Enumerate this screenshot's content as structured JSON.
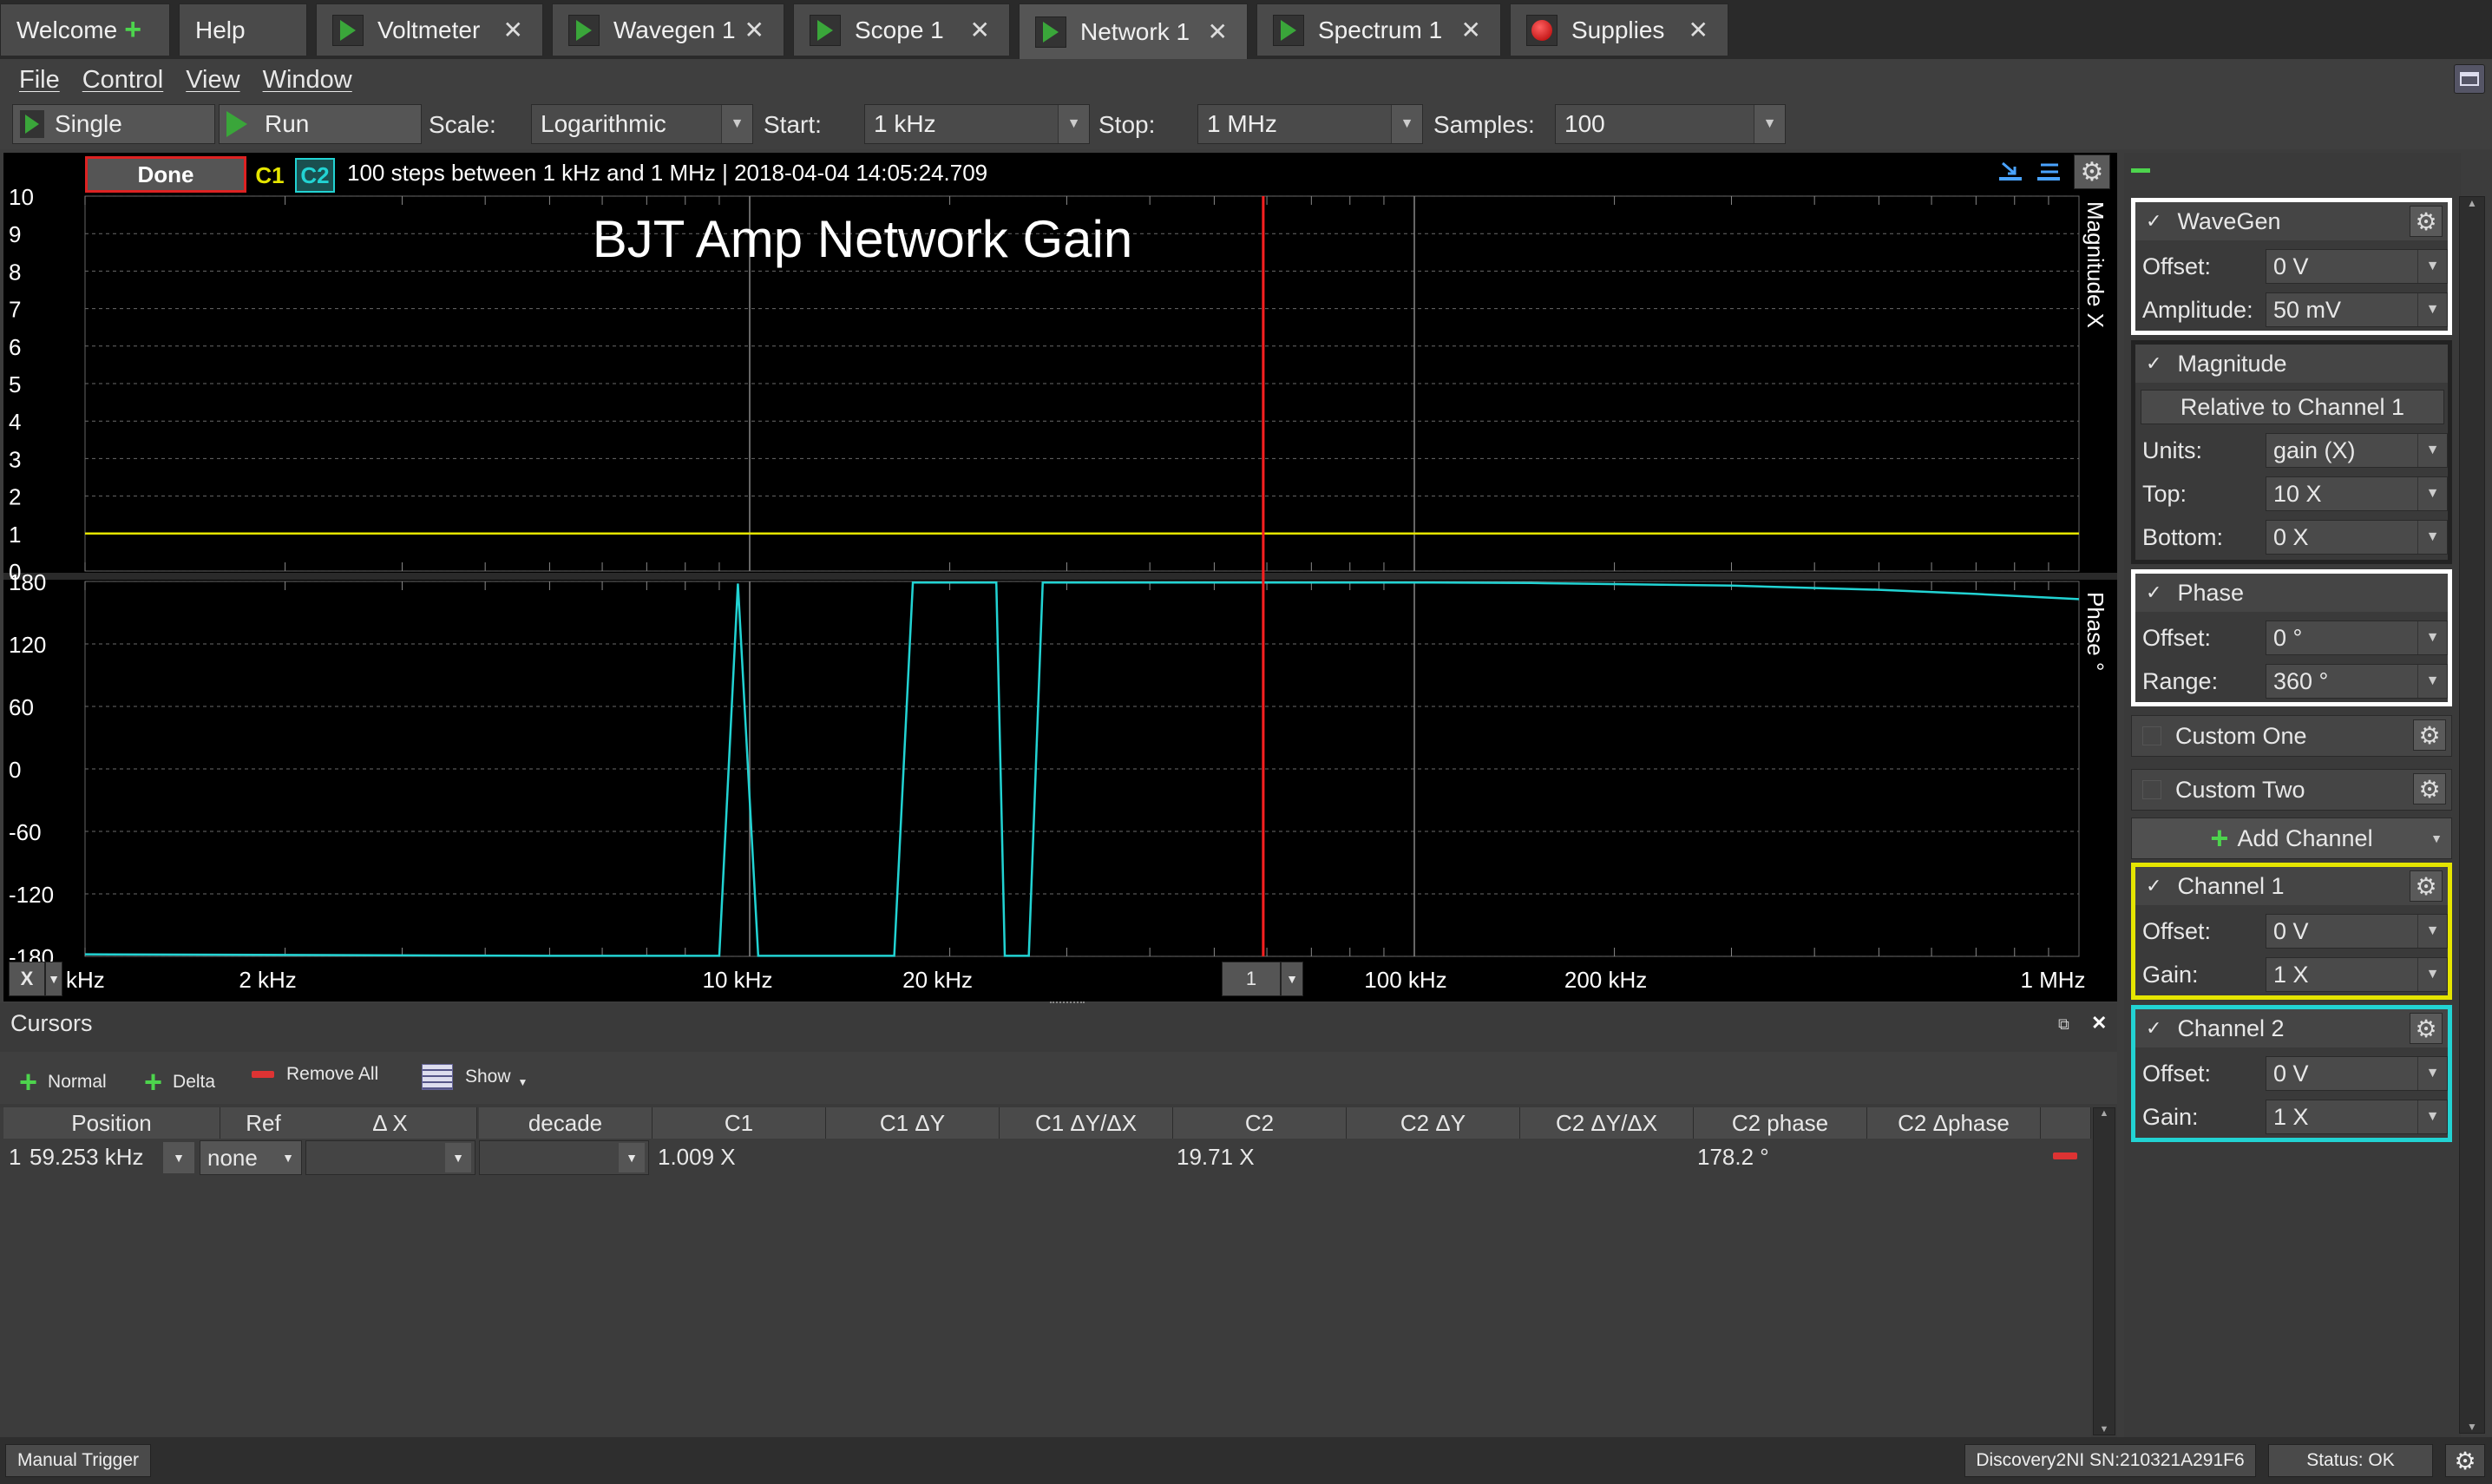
{
  "tabs": [
    {
      "label": "Welcome",
      "icon": "plus-icon"
    },
    {
      "label": "Help"
    },
    {
      "label": "Voltmeter",
      "icon": "play-icon"
    },
    {
      "label": "Wavegen 1",
      "icon": "play-icon"
    },
    {
      "label": "Scope 1",
      "icon": "play-icon"
    },
    {
      "label": "Network 1",
      "icon": "play-icon",
      "active": true
    },
    {
      "label": "Spectrum 1",
      "icon": "play-icon"
    },
    {
      "label": "Supplies",
      "icon": "record-icon"
    }
  ],
  "menu": [
    "File",
    "Control",
    "View",
    "Window"
  ],
  "toolbar": {
    "single_label": "Single",
    "run_label": "Run",
    "scale_label": "Scale:",
    "scale_value": "Logarithmic",
    "start_label": "Start:",
    "start_value": "1 kHz",
    "stop_label": "Stop:",
    "stop_value": "1 MHz",
    "samples_label": "Samples:",
    "samples_value": "100"
  },
  "plot": {
    "status": "Done",
    "c1_label": "C1",
    "c2_label": "C2",
    "info": "100 steps  between 1 kHz and 1 MHz | 2018-04-04 14:05:24.709",
    "title": "BJT Amp Network Gain",
    "magnitude_axis_label": "Magnitude X",
    "phase_axis_label": "Phase °",
    "x_button": "X",
    "zoom_value": "1",
    "colors": {
      "c1": "#e5e500",
      "c2": "#22d3d3",
      "cursor": "#ff2020"
    }
  },
  "chart_data": [
    {
      "type": "line",
      "title": "BJT Amp Network Gain",
      "xlabel": "",
      "ylabel": "Magnitude X",
      "x_scale": "log",
      "xlim": [
        1000,
        1000000
      ],
      "ylim": [
        0,
        10
      ],
      "y_ticks": [
        "10",
        "9",
        "8",
        "7",
        "6",
        "5",
        "4",
        "3",
        "2",
        "1",
        "0"
      ],
      "x_tick_labels": [
        "kHz",
        "2 kHz",
        "10 kHz",
        "20 kHz",
        "100 kHz",
        "200 kHz",
        "1 MHz"
      ],
      "series": [
        {
          "name": "C1",
          "x": [
            1000,
            1000000
          ],
          "y": [
            1.0,
            1.0
          ]
        }
      ],
      "cursor_x": 59253,
      "grid": true
    },
    {
      "type": "line",
      "title": "",
      "xlabel": "",
      "ylabel": "Phase °",
      "x_scale": "log",
      "xlim": [
        1000,
        1000000
      ],
      "ylim": [
        -180,
        180
      ],
      "y_ticks": [
        "180",
        "120",
        "60",
        "0",
        "-60",
        "-120",
        "-180"
      ],
      "series": [
        {
          "name": "C2",
          "x": [
            1000,
            5000,
            9000,
            9600,
            10300,
            16500,
            17600,
            23500,
            24200,
            26300,
            27600,
            100000,
            150000,
            300000,
            500000,
            700000,
            1000000
          ],
          "y": [
            -178,
            -179.5,
            -179.5,
            178,
            -179.5,
            -179.5,
            179,
            179,
            -179.5,
            -179.5,
            179,
            179,
            178.5,
            176,
            172,
            168,
            163
          ]
        }
      ],
      "cursor_x": 59253,
      "grid": true
    }
  ],
  "right_panel": {
    "wavegen": {
      "title": "WaveGen",
      "offset_label": "Offset:",
      "offset_value": "0 V",
      "amplitude_label": "Amplitude:",
      "amplitude_value": "50 mV"
    },
    "magnitude": {
      "title": "Magnitude",
      "relative": "Relative to Channel 1",
      "units_label": "Units:",
      "units_value": "gain (X)",
      "top_label": "Top:",
      "top_value": "10 X",
      "bottom_label": "Bottom:",
      "bottom_value": "0 X"
    },
    "phase": {
      "title": "Phase",
      "offset_label": "Offset:",
      "offset_value": "0 °",
      "range_label": "Range:",
      "range_value": "360 °"
    },
    "custom_one": "Custom One",
    "custom_two": "Custom Two",
    "add_channel": "Add Channel",
    "channel1": {
      "title": "Channel 1",
      "offset_label": "Offset:",
      "offset_value": "0 V",
      "gain_label": "Gain:",
      "gain_value": "1 X",
      "color": "#e5e500"
    },
    "channel2": {
      "title": "Channel 2",
      "offset_label": "Offset:",
      "offset_value": "0 V",
      "gain_label": "Gain:",
      "gain_value": "1 X",
      "color": "#22d3d3"
    }
  },
  "cursors": {
    "title": "Cursors",
    "normal_label": "Normal",
    "delta_label": "Delta",
    "remove_all_label": "Remove All",
    "show_label": "Show",
    "headers": [
      "Position",
      "Ref",
      "Δ X",
      "decade",
      "C1",
      "C1 ΔY",
      "C1 ΔY/ΔX",
      "C2",
      "C2 ΔY",
      "C2 ΔY/ΔX",
      "C2 phase",
      "C2 Δphase"
    ],
    "row": {
      "index": "1",
      "position": "59.253 kHz",
      "ref": "none",
      "c1": "1.009 X",
      "c2": "19.71 X",
      "c2_phase": "178.2 °"
    }
  },
  "status_bar": {
    "manual_trigger": "Manual Trigger",
    "device": "Discovery2NI SN:210321A291F6",
    "status": "Status: OK"
  }
}
